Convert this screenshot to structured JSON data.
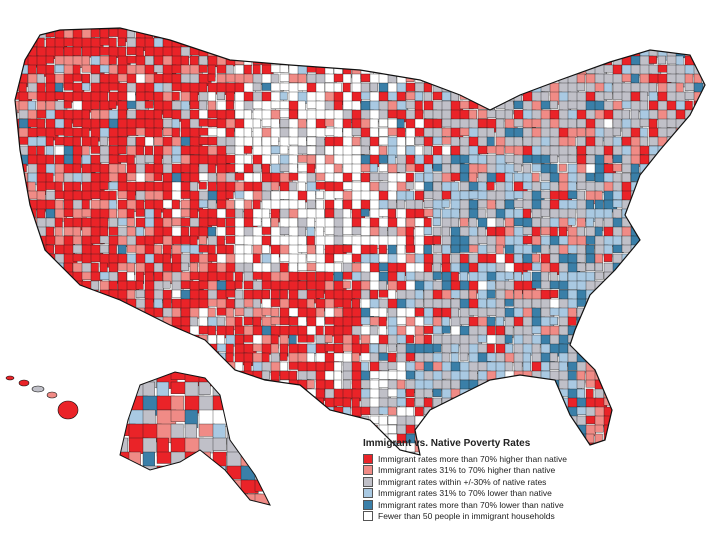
{
  "legend": {
    "title": "Immigrant vs. Native Poverty Rates",
    "items": [
      {
        "label": "Immigrant rates more than 70% higher than native",
        "color": "#ea2328"
      },
      {
        "label": "Immigrant rates 31% to 70% higher than native",
        "color": "#f08b86"
      },
      {
        "label": "Immigrant rates within +/-30% of native rates",
        "color": "#c0c0c8"
      },
      {
        "label": "Immigrant rates 31% to 70% lower than native",
        "color": "#a9c9e2"
      },
      {
        "label": "Immigrant rates more than 70% lower than native",
        "color": "#3a7fa8"
      },
      {
        "label": "Fewer than 50 people in immigrant households",
        "color": "#ffffff"
      }
    ]
  },
  "colors": {
    "border": "#1a1a1a"
  }
}
